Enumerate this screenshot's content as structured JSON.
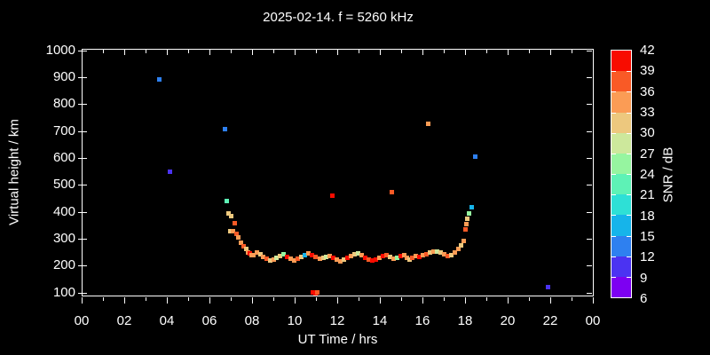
{
  "title": "2025-02-14. f = 5260 kHz",
  "colors": {
    "background": "#000000",
    "foreground": "#FFFFFF"
  },
  "chart_data": {
    "type": "scatter",
    "title": "2025-02-14. f = 5260 kHz",
    "xlabel": "UT Time / hrs",
    "ylabel": "Virtual height / km",
    "grid": false,
    "x_range_hours": [
      0,
      24
    ],
    "y_range_km": [
      85,
      1010
    ],
    "x_tick_hours": [
      0,
      2,
      4,
      6,
      8,
      10,
      12,
      14,
      16,
      18,
      20,
      22,
      24
    ],
    "x_tick_labels": [
      "00",
      "02",
      "04",
      "06",
      "08",
      "10",
      "12",
      "14",
      "16",
      "18",
      "20",
      "22",
      "00"
    ],
    "x_minor_tick_hours": [
      1,
      3,
      5,
      7,
      9,
      11,
      13,
      15,
      17,
      19,
      21,
      23
    ],
    "y_ticks_km": [
      100,
      200,
      300,
      400,
      500,
      600,
      700,
      800,
      900,
      1000
    ],
    "colorbar": {
      "label": "SNR / dB",
      "tick_values_top_to_bottom": [
        42,
        39,
        36,
        33,
        30,
        27,
        24,
        21,
        18,
        15,
        12,
        9,
        6
      ],
      "min_db": 6,
      "max_db": 42,
      "step_db": 3,
      "segment_colors_top_to_bottom": [
        "#F80C00",
        "#F95A26",
        "#FB9C55",
        "#EDC87E",
        "#CDE89C",
        "#96F5A0",
        "#5EF2B6",
        "#2EE0D6",
        "#16B4EA",
        "#2E80F0",
        "#4B33F2",
        "#7D00F2"
      ]
    },
    "points_t_h_snr": [
      [
        3.63,
        895,
        13
      ],
      [
        4.12,
        549,
        10
      ],
      [
        6.71,
        710,
        13
      ],
      [
        11.75,
        462,
        40
      ],
      [
        14.55,
        476,
        37
      ],
      [
        16.25,
        730,
        34
      ],
      [
        18.46,
        608,
        13
      ],
      [
        21.88,
        123,
        10
      ],
      [
        10.83,
        102,
        40
      ],
      [
        10.96,
        100,
        40
      ],
      [
        11.04,
        101,
        37
      ],
      [
        6.79,
        440,
        22
      ],
      [
        6.88,
        394,
        31
      ],
      [
        7.0,
        384,
        31
      ],
      [
        6.96,
        331,
        31
      ],
      [
        7.08,
        328,
        34
      ],
      [
        7.17,
        360,
        37
      ],
      [
        7.25,
        318,
        37
      ],
      [
        7.33,
        305,
        34
      ],
      [
        7.46,
        285,
        34
      ],
      [
        7.58,
        272,
        37
      ],
      [
        7.71,
        262,
        31
      ],
      [
        7.79,
        249,
        34
      ],
      [
        7.88,
        247,
        40
      ],
      [
        7.96,
        239,
        34
      ],
      [
        8.04,
        240,
        34
      ],
      [
        8.21,
        250,
        34
      ],
      [
        8.37,
        244,
        31
      ],
      [
        8.5,
        234,
        34
      ],
      [
        8.67,
        227,
        37
      ],
      [
        8.83,
        220,
        31
      ],
      [
        9.0,
        224,
        34
      ],
      [
        9.12,
        230,
        28
      ],
      [
        9.29,
        237,
        31
      ],
      [
        9.46,
        244,
        25
      ],
      [
        9.62,
        234,
        40
      ],
      [
        9.79,
        227,
        34
      ],
      [
        9.96,
        220,
        34
      ],
      [
        10.12,
        227,
        37
      ],
      [
        10.29,
        234,
        31
      ],
      [
        10.46,
        240,
        16
      ],
      [
        10.62,
        247,
        34
      ],
      [
        10.79,
        240,
        40
      ],
      [
        10.96,
        234,
        37
      ],
      [
        11.17,
        227,
        34
      ],
      [
        11.33,
        230,
        31
      ],
      [
        11.46,
        234,
        28
      ],
      [
        11.62,
        237,
        34
      ],
      [
        11.79,
        230,
        40
      ],
      [
        11.96,
        224,
        34
      ],
      [
        12.12,
        217,
        34
      ],
      [
        12.29,
        224,
        31
      ],
      [
        12.46,
        230,
        40
      ],
      [
        12.62,
        237,
        34
      ],
      [
        12.79,
        244,
        31
      ],
      [
        12.96,
        247,
        28
      ],
      [
        13.12,
        240,
        34
      ],
      [
        13.29,
        230,
        40
      ],
      [
        13.46,
        224,
        37
      ],
      [
        13.62,
        220,
        40
      ],
      [
        13.79,
        224,
        40
      ],
      [
        13.96,
        230,
        34
      ],
      [
        14.12,
        237,
        40
      ],
      [
        14.29,
        240,
        37
      ],
      [
        14.46,
        234,
        31
      ],
      [
        14.62,
        227,
        34
      ],
      [
        14.79,
        230,
        25
      ],
      [
        14.96,
        237,
        40
      ],
      [
        15.12,
        240,
        34
      ],
      [
        15.25,
        230,
        34
      ],
      [
        15.37,
        224,
        31
      ],
      [
        15.5,
        230,
        37
      ],
      [
        15.67,
        237,
        34
      ],
      [
        15.83,
        234,
        40
      ],
      [
        16.0,
        240,
        34
      ],
      [
        16.17,
        244,
        37
      ],
      [
        16.33,
        250,
        31
      ],
      [
        16.5,
        254,
        34
      ],
      [
        16.67,
        254,
        28
      ],
      [
        16.83,
        250,
        31
      ],
      [
        17.0,
        244,
        34
      ],
      [
        17.17,
        237,
        37
      ],
      [
        17.33,
        240,
        31
      ],
      [
        17.5,
        250,
        34
      ],
      [
        17.67,
        263,
        34
      ],
      [
        17.79,
        277,
        31
      ],
      [
        17.92,
        293,
        34
      ],
      [
        18.0,
        336,
        37
      ],
      [
        18.04,
        356,
        34
      ],
      [
        18.08,
        376,
        31
      ],
      [
        18.17,
        395,
        25
      ],
      [
        18.29,
        419,
        16
      ]
    ]
  }
}
